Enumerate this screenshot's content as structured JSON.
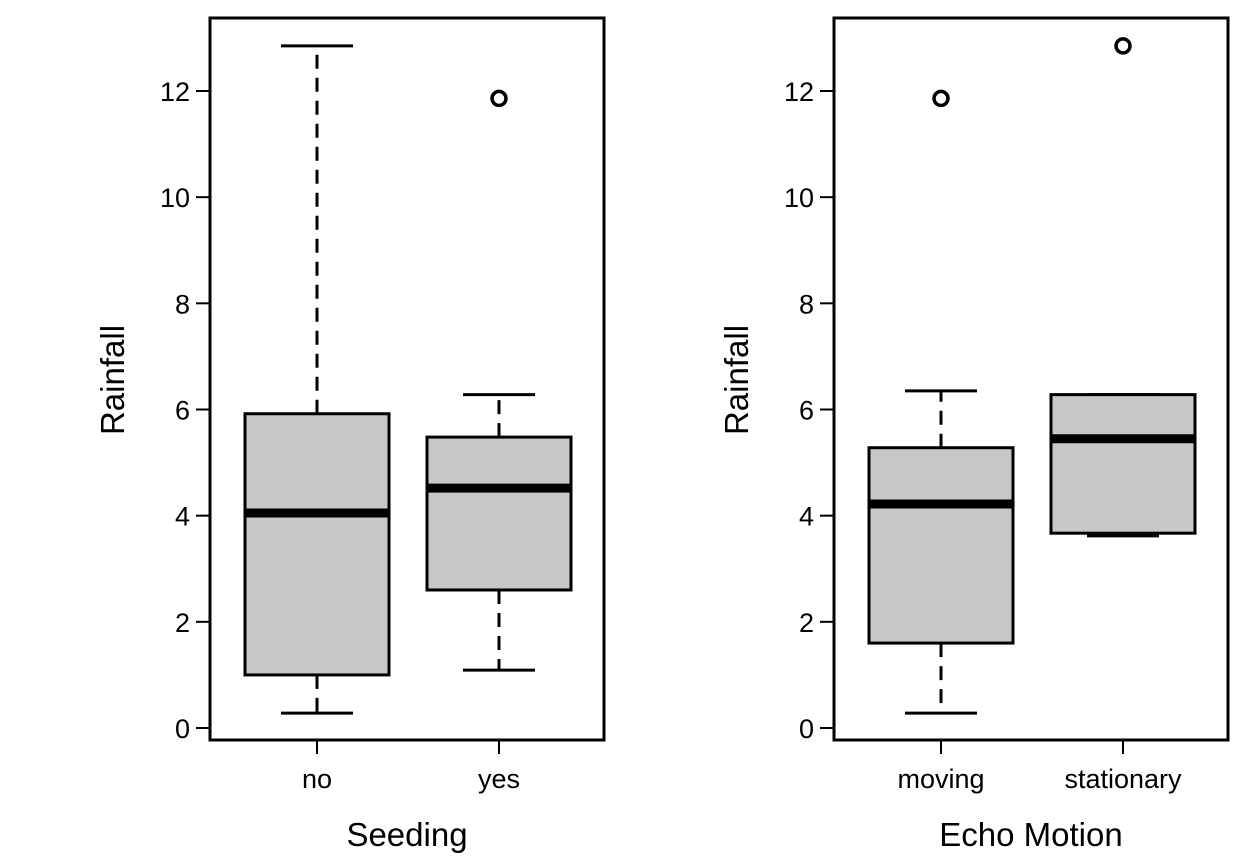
{
  "chart_data": [
    {
      "type": "boxplot",
      "xlabel": "Seeding",
      "ylabel": "Rainfall",
      "ylim": [
        0,
        13
      ],
      "yticks": [
        0,
        2,
        4,
        6,
        8,
        10,
        12
      ],
      "categories": [
        "no",
        "yes"
      ],
      "boxes": [
        {
          "category": "no",
          "whisker_low": 0.28,
          "q1": 1.0,
          "median": 4.05,
          "q3": 5.92,
          "whisker_high": 12.85,
          "outliers": []
        },
        {
          "category": "yes",
          "whisker_low": 1.09,
          "q1": 2.6,
          "median": 4.52,
          "q3": 5.48,
          "whisker_high": 6.28,
          "outliers": [
            11.86
          ]
        }
      ]
    },
    {
      "type": "boxplot",
      "xlabel": "Echo Motion",
      "ylabel": "Rainfall",
      "ylim": [
        0,
        13
      ],
      "yticks": [
        0,
        2,
        4,
        6,
        8,
        10,
        12
      ],
      "categories": [
        "moving",
        "stationary"
      ],
      "boxes": [
        {
          "category": "moving",
          "whisker_low": 0.28,
          "q1": 1.6,
          "median": 4.22,
          "q3": 5.28,
          "whisker_high": 6.35,
          "outliers": [
            11.86
          ]
        },
        {
          "category": "stationary",
          "whisker_low": 3.62,
          "q1": 3.67,
          "median": 5.45,
          "q3": 6.28,
          "whisker_high": 6.28,
          "outliers": [
            12.85
          ]
        }
      ]
    }
  ]
}
